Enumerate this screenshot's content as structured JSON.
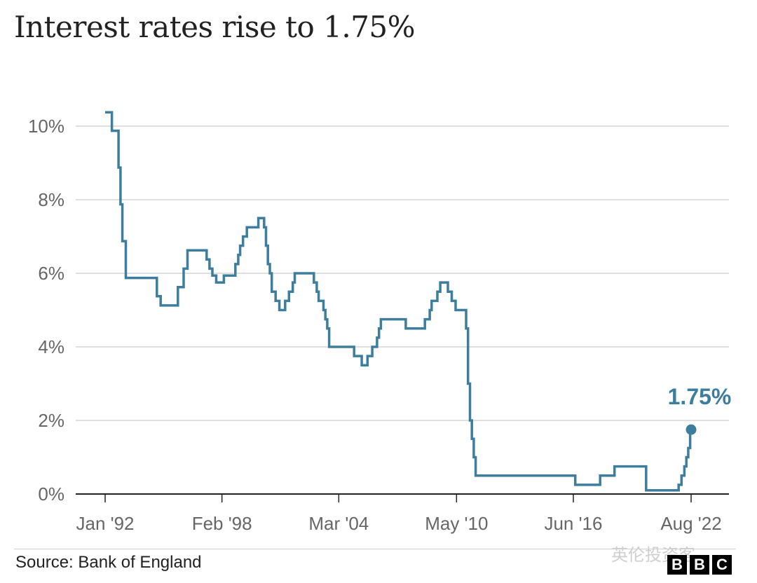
{
  "chart_data": {
    "type": "line",
    "title": "Interest rates rise to 1.75%",
    "source": "Source: Bank of England",
    "xlabel": "",
    "ylabel": "",
    "x_ticks": [
      "Jan '92",
      "Feb '98",
      "Mar '04",
      "May '10",
      "Jun '16",
      "Aug '22"
    ],
    "y_ticks": [
      "0%",
      "2%",
      "4%",
      "6%",
      "8%",
      "10%"
    ],
    "ylim": [
      0,
      10.5
    ],
    "xlim": [
      1991.4,
      2023.0
    ],
    "grid": true,
    "line_color": "#3d7e9e",
    "annotation": {
      "label": "1.75%",
      "x": 2022.6,
      "y": 1.75
    },
    "series": [
      {
        "values": [
          [
            1992.0,
            10.375
          ],
          [
            1992.35,
            10.375
          ],
          [
            1992.35,
            9.875
          ],
          [
            1992.7,
            9.875
          ],
          [
            1992.7,
            8.875
          ],
          [
            1992.8,
            8.875
          ],
          [
            1992.8,
            7.875
          ],
          [
            1992.9,
            7.875
          ],
          [
            1992.9,
            6.875
          ],
          [
            1993.08,
            6.875
          ],
          [
            1993.08,
            5.875
          ],
          [
            1994.7,
            5.875
          ],
          [
            1994.7,
            5.375
          ],
          [
            1994.9,
            5.375
          ],
          [
            1994.9,
            5.125
          ],
          [
            1995.4,
            5.125
          ],
          [
            1995.8,
            5.125
          ],
          [
            1995.8,
            5.625
          ],
          [
            1996.1,
            5.625
          ],
          [
            1996.1,
            6.125
          ],
          [
            1996.3,
            6.125
          ],
          [
            1996.3,
            6.625
          ],
          [
            1997.3,
            6.625
          ],
          [
            1997.3,
            6.375
          ],
          [
            1997.45,
            6.375
          ],
          [
            1997.45,
            6.125
          ],
          [
            1997.6,
            6.125
          ],
          [
            1997.6,
            5.938
          ],
          [
            1997.8,
            5.938
          ],
          [
            1997.8,
            5.75
          ],
          [
            1998.2,
            5.75
          ],
          [
            1998.2,
            5.938
          ],
          [
            1998.8,
            5.938
          ],
          [
            1998.8,
            6.25
          ],
          [
            1998.95,
            6.25
          ],
          [
            1998.95,
            6.5
          ],
          [
            1999.05,
            6.5
          ],
          [
            1999.05,
            6.75
          ],
          [
            1999.2,
            6.75
          ],
          [
            1999.2,
            7.0
          ],
          [
            1999.4,
            7.0
          ],
          [
            1999.4,
            7.25
          ],
          [
            2000.0,
            7.25
          ],
          [
            2000.0,
            7.5
          ],
          [
            2000.3,
            7.5
          ],
          [
            2000.3,
            7.25
          ],
          [
            2000.4,
            7.25
          ],
          [
            2000.4,
            6.75
          ],
          [
            2000.5,
            6.75
          ],
          [
            2000.5,
            6.25
          ],
          [
            2000.6,
            6.25
          ],
          [
            2000.6,
            6.0
          ],
          [
            2000.7,
            6.0
          ],
          [
            2000.7,
            5.5
          ],
          [
            2000.9,
            5.5
          ],
          [
            2000.9,
            5.25
          ],
          [
            2001.1,
            5.25
          ],
          [
            2001.1,
            5.0
          ],
          [
            2001.4,
            5.0
          ],
          [
            2001.4,
            5.25
          ],
          [
            2001.6,
            5.25
          ],
          [
            2001.6,
            5.5
          ],
          [
            2001.8,
            5.5
          ],
          [
            2001.8,
            5.75
          ],
          [
            2001.9,
            5.75
          ],
          [
            2001.9,
            6.0
          ],
          [
            2002.9,
            6.0
          ],
          [
            2002.9,
            5.75
          ],
          [
            2003.05,
            5.75
          ],
          [
            2003.05,
            5.5
          ],
          [
            2003.15,
            5.5
          ],
          [
            2003.15,
            5.25
          ],
          [
            2003.4,
            5.25
          ],
          [
            2003.4,
            5.0
          ],
          [
            2003.5,
            5.0
          ],
          [
            2003.5,
            4.75
          ],
          [
            2003.6,
            4.75
          ],
          [
            2003.6,
            4.5
          ],
          [
            2003.7,
            4.5
          ],
          [
            2003.7,
            4.0
          ],
          [
            2005.0,
            4.0
          ],
          [
            2005.0,
            3.75
          ],
          [
            2005.4,
            3.75
          ],
          [
            2005.4,
            3.5
          ],
          [
            2005.7,
            3.5
          ],
          [
            2005.7,
            3.75
          ],
          [
            2005.95,
            3.75
          ],
          [
            2005.95,
            4.0
          ],
          [
            2006.2,
            4.0
          ],
          [
            2006.2,
            4.25
          ],
          [
            2006.3,
            4.25
          ],
          [
            2006.3,
            4.5
          ],
          [
            2006.4,
            4.5
          ],
          [
            2006.4,
            4.75
          ],
          [
            2007.7,
            4.75
          ],
          [
            2007.7,
            4.5
          ],
          [
            2008.7,
            4.5
          ],
          [
            2008.7,
            4.75
          ],
          [
            2008.95,
            4.75
          ],
          [
            2008.95,
            5.0
          ],
          [
            2009.05,
            5.0
          ],
          [
            2009.05,
            5.25
          ],
          [
            2009.35,
            5.25
          ],
          [
            2009.35,
            5.5
          ],
          [
            2009.5,
            5.5
          ],
          [
            2009.5,
            5.75
          ],
          [
            2009.9,
            5.75
          ],
          [
            2009.9,
            5.5
          ],
          [
            2010.1,
            5.5
          ],
          [
            2010.1,
            5.25
          ],
          [
            2010.3,
            5.25
          ],
          [
            2010.3,
            5.0
          ],
          [
            2010.85,
            5.0
          ],
          [
            2010.85,
            4.5
          ],
          [
            2010.95,
            4.5
          ],
          [
            2010.95,
            3.0
          ],
          [
            2011.05,
            3.0
          ],
          [
            2011.05,
            2.0
          ],
          [
            2011.15,
            2.0
          ],
          [
            2011.15,
            1.5
          ],
          [
            2011.25,
            1.5
          ],
          [
            2011.25,
            1.0
          ],
          [
            2011.35,
            1.0
          ],
          [
            2011.35,
            0.5
          ],
          [
            2016.55,
            0.5
          ],
          [
            2016.55,
            0.25
          ],
          [
            2017.85,
            0.25
          ],
          [
            2017.85,
            0.5
          ],
          [
            2018.6,
            0.5
          ],
          [
            2018.6,
            0.75
          ],
          [
            2020.25,
            0.75
          ],
          [
            2020.25,
            0.1
          ],
          [
            2021.95,
            0.1
          ],
          [
            2021.95,
            0.25
          ],
          [
            2022.1,
            0.25
          ],
          [
            2022.1,
            0.5
          ],
          [
            2022.25,
            0.5
          ],
          [
            2022.25,
            0.75
          ],
          [
            2022.35,
            0.75
          ],
          [
            2022.35,
            1.0
          ],
          [
            2022.45,
            1.0
          ],
          [
            2022.45,
            1.25
          ],
          [
            2022.55,
            1.25
          ],
          [
            2022.55,
            1.75
          ],
          [
            2022.6,
            1.75
          ]
        ]
      }
    ]
  },
  "branding": {
    "watermark": "英伦投资客",
    "logo_letters": [
      "B",
      "B",
      "C"
    ]
  }
}
